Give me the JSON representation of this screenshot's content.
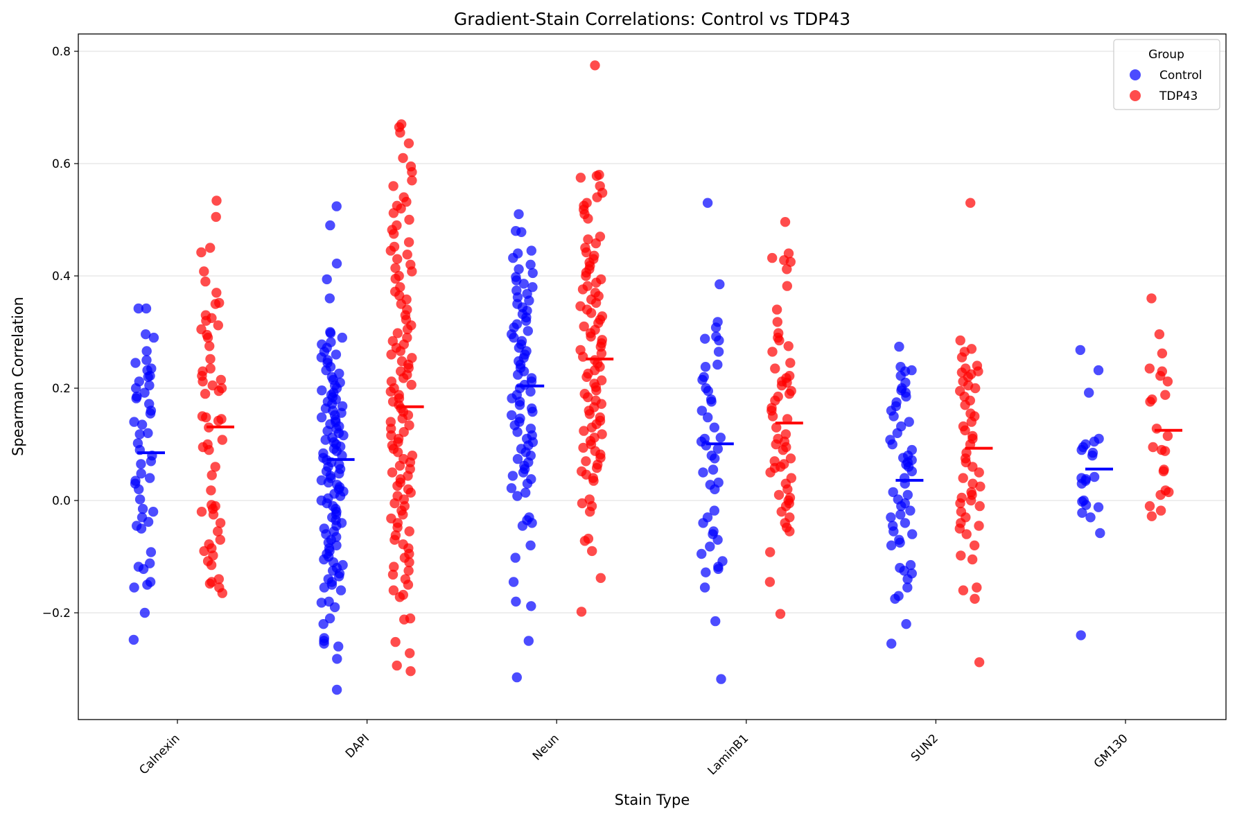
{
  "chart_data": {
    "type": "scatter",
    "subtype": "strip plot with mean markers",
    "title": "Gradient-Stain Correlations: Control vs TDP43",
    "xlabel": "Stain Type",
    "ylabel": "Spearman Correlation",
    "categories": [
      "Calnexin",
      "DAPI",
      "Neun",
      "LaminB1",
      "SUN2",
      "GM130"
    ],
    "ylim": [
      -0.39,
      0.83
    ],
    "yticks": [
      -0.2,
      0.0,
      0.2,
      0.4,
      0.6,
      0.8
    ],
    "ytick_labels": [
      "−0.2",
      "0.0",
      "0.2",
      "0.4",
      "0.6",
      "0.8"
    ],
    "grid": "horizontal",
    "legend": {
      "title": "Group",
      "placement": "top-right",
      "entries": [
        "Control",
        "TDP43"
      ]
    },
    "series": [
      {
        "name": "Control",
        "color": "#0000ff",
        "means": [
          0.085,
          0.073,
          0.204,
          0.101,
          0.036,
          0.056
        ],
        "values": {
          "Calnexin": [
            0.342,
            0.342,
            0.296,
            0.29,
            0.266,
            0.25,
            0.245,
            0.235,
            0.232,
            0.222,
            0.22,
            0.212,
            0.205,
            0.2,
            0.192,
            0.185,
            0.182,
            0.172,
            0.16,
            0.155,
            0.14,
            0.135,
            0.12,
            0.118,
            0.102,
            0.09,
            0.08,
            0.07,
            0.065,
            0.048,
            0.04,
            0.035,
            0.03,
            0.02,
            0.002,
            -0.015,
            -0.02,
            -0.03,
            -0.038,
            -0.045,
            -0.05,
            -0.092,
            -0.112,
            -0.118,
            -0.122,
            -0.145,
            -0.15,
            -0.155,
            -0.2,
            -0.248
          ],
          "DAPI": [
            0.524,
            0.49,
            0.422,
            0.394,
            0.36,
            0.3,
            0.298,
            0.29,
            0.282,
            0.278,
            0.272,
            0.265,
            0.26,
            0.255,
            0.25,
            0.245,
            0.238,
            0.232,
            0.226,
            0.22,
            0.215,
            0.21,
            0.205,
            0.2,
            0.196,
            0.192,
            0.188,
            0.184,
            0.18,
            0.176,
            0.172,
            0.168,
            0.164,
            0.16,
            0.156,
            0.152,
            0.148,
            0.144,
            0.14,
            0.136,
            0.132,
            0.128,
            0.124,
            0.12,
            0.116,
            0.112,
            0.108,
            0.104,
            0.1,
            0.096,
            0.092,
            0.088,
            0.084,
            0.08,
            0.076,
            0.072,
            0.068,
            0.064,
            0.06,
            0.056,
            0.052,
            0.048,
            0.044,
            0.04,
            0.036,
            0.032,
            0.028,
            0.024,
            0.02,
            0.016,
            0.012,
            0.008,
            0.004,
            0.0,
            -0.005,
            -0.01,
            -0.015,
            -0.02,
            -0.025,
            -0.03,
            -0.035,
            -0.04,
            -0.045,
            -0.05,
            -0.055,
            -0.06,
            -0.065,
            -0.07,
            -0.075,
            -0.08,
            -0.085,
            -0.09,
            -0.095,
            -0.1,
            -0.105,
            -0.11,
            -0.115,
            -0.12,
            -0.125,
            -0.13,
            -0.135,
            -0.14,
            -0.145,
            -0.15,
            -0.155,
            -0.16,
            -0.18,
            -0.182,
            -0.19,
            -0.21,
            -0.22,
            -0.245,
            -0.25,
            -0.255,
            -0.26,
            -0.282,
            -0.337
          ],
          "Neun": [
            0.51,
            0.48,
            0.478,
            0.445,
            0.44,
            0.432,
            0.42,
            0.412,
            0.405,
            0.398,
            0.392,
            0.386,
            0.38,
            0.374,
            0.368,
            0.362,
            0.356,
            0.35,
            0.344,
            0.338,
            0.332,
            0.326,
            0.32,
            0.314,
            0.308,
            0.302,
            0.296,
            0.29,
            0.284,
            0.278,
            0.272,
            0.266,
            0.26,
            0.254,
            0.248,
            0.242,
            0.236,
            0.23,
            0.224,
            0.218,
            0.212,
            0.206,
            0.2,
            0.194,
            0.188,
            0.182,
            0.176,
            0.17,
            0.164,
            0.158,
            0.152,
            0.146,
            0.14,
            0.134,
            0.128,
            0.122,
            0.116,
            0.11,
            0.104,
            0.098,
            0.092,
            0.086,
            0.08,
            0.074,
            0.068,
            0.062,
            0.056,
            0.05,
            0.044,
            0.038,
            0.03,
            0.022,
            0.014,
            0.008,
            -0.03,
            -0.035,
            -0.04,
            -0.045,
            -0.08,
            -0.102,
            -0.145,
            -0.18,
            -0.188,
            -0.25,
            -0.315
          ],
          "LaminB1": [
            0.53,
            0.385,
            0.318,
            0.308,
            0.292,
            0.288,
            0.285,
            0.265,
            0.242,
            0.238,
            0.22,
            0.215,
            0.2,
            0.195,
            0.18,
            0.176,
            0.16,
            0.148,
            0.13,
            0.112,
            0.11,
            0.105,
            0.098,
            0.092,
            0.08,
            0.075,
            0.055,
            0.05,
            0.032,
            0.028,
            0.02,
            -0.018,
            -0.03,
            -0.04,
            -0.055,
            -0.06,
            -0.07,
            -0.082,
            -0.095,
            -0.108,
            -0.118,
            -0.122,
            -0.128,
            -0.155,
            -0.215,
            -0.318
          ],
          "SUN2": [
            0.274,
            0.238,
            0.232,
            0.23,
            0.222,
            0.21,
            0.2,
            0.196,
            0.192,
            0.185,
            0.175,
            0.168,
            0.16,
            0.15,
            0.14,
            0.132,
            0.12,
            0.108,
            0.1,
            0.09,
            0.08,
            0.076,
            0.072,
            0.068,
            0.064,
            0.06,
            0.052,
            0.04,
            0.03,
            0.015,
            0.01,
            0.002,
            -0.005,
            -0.01,
            -0.018,
            -0.025,
            -0.03,
            -0.04,
            -0.045,
            -0.055,
            -0.06,
            -0.07,
            -0.075,
            -0.08,
            -0.115,
            -0.12,
            -0.125,
            -0.13,
            -0.14,
            -0.155,
            -0.17,
            -0.175,
            -0.22,
            -0.255
          ],
          "GM130": [
            0.268,
            0.232,
            0.192,
            0.11,
            0.105,
            0.1,
            0.095,
            0.09,
            0.085,
            0.08,
            0.042,
            0.04,
            0.038,
            0.035,
            0.03,
            0.0,
            -0.002,
            -0.008,
            -0.012,
            -0.022,
            -0.03,
            -0.058,
            -0.24
          ]
        }
      },
      {
        "name": "TDP43",
        "color": "#ff0000",
        "means": [
          0.131,
          0.167,
          0.252,
          0.138,
          0.093,
          0.125
        ],
        "values": {
          "Calnexin": [
            0.534,
            0.505,
            0.45,
            0.442,
            0.408,
            0.39,
            0.37,
            0.352,
            0.35,
            0.33,
            0.325,
            0.32,
            0.312,
            0.305,
            0.295,
            0.29,
            0.275,
            0.252,
            0.235,
            0.23,
            0.222,
            0.215,
            0.212,
            0.205,
            0.2,
            0.195,
            0.19,
            0.15,
            0.148,
            0.145,
            0.142,
            0.13,
            0.108,
            0.1,
            0.095,
            0.09,
            0.06,
            0.045,
            0.018,
            -0.008,
            -0.01,
            -0.015,
            -0.02,
            -0.025,
            -0.04,
            -0.055,
            -0.07,
            -0.078,
            -0.085,
            -0.09,
            -0.098,
            -0.108,
            -0.115,
            -0.14,
            -0.145,
            -0.148,
            -0.155,
            -0.165
          ],
          "DAPI": [
            0.67,
            0.665,
            0.655,
            0.636,
            0.61,
            0.595,
            0.585,
            0.57,
            0.56,
            0.54,
            0.532,
            0.525,
            0.52,
            0.512,
            0.5,
            0.49,
            0.482,
            0.475,
            0.46,
            0.452,
            0.445,
            0.438,
            0.43,
            0.42,
            0.414,
            0.408,
            0.4,
            0.395,
            0.38,
            0.372,
            0.365,
            0.358,
            0.35,
            0.34,
            0.33,
            0.322,
            0.312,
            0.305,
            0.298,
            0.29,
            0.284,
            0.278,
            0.272,
            0.266,
            0.26,
            0.254,
            0.248,
            0.242,
            0.236,
            0.23,
            0.224,
            0.218,
            0.212,
            0.206,
            0.2,
            0.194,
            0.188,
            0.182,
            0.176,
            0.17,
            0.164,
            0.158,
            0.152,
            0.146,
            0.14,
            0.134,
            0.128,
            0.122,
            0.116,
            0.11,
            0.104,
            0.098,
            0.092,
            0.086,
            0.08,
            0.074,
            0.068,
            0.062,
            0.056,
            0.05,
            0.044,
            0.038,
            0.032,
            0.026,
            0.02,
            0.014,
            0.008,
            0.002,
            -0.005,
            -0.01,
            -0.018,
            -0.025,
            -0.032,
            -0.04,
            -0.048,
            -0.055,
            -0.062,
            -0.07,
            -0.078,
            -0.085,
            -0.095,
            -0.102,
            -0.11,
            -0.118,
            -0.125,
            -0.132,
            -0.14,
            -0.15,
            -0.16,
            -0.168,
            -0.172,
            -0.21,
            -0.212,
            -0.252,
            -0.272,
            -0.294,
            -0.304
          ],
          "Neun": [
            0.775,
            0.58,
            0.578,
            0.575,
            0.56,
            0.548,
            0.54,
            0.53,
            0.525,
            0.518,
            0.51,
            0.502,
            0.47,
            0.465,
            0.458,
            0.45,
            0.442,
            0.436,
            0.43,
            0.424,
            0.418,
            0.412,
            0.406,
            0.4,
            0.394,
            0.388,
            0.382,
            0.376,
            0.37,
            0.364,
            0.358,
            0.352,
            0.346,
            0.34,
            0.334,
            0.328,
            0.322,
            0.316,
            0.31,
            0.304,
            0.298,
            0.292,
            0.286,
            0.28,
            0.274,
            0.268,
            0.262,
            0.256,
            0.25,
            0.244,
            0.238,
            0.232,
            0.226,
            0.22,
            0.214,
            0.208,
            0.202,
            0.196,
            0.19,
            0.184,
            0.178,
            0.172,
            0.166,
            0.16,
            0.154,
            0.148,
            0.142,
            0.136,
            0.13,
            0.124,
            0.118,
            0.112,
            0.106,
            0.1,
            0.094,
            0.088,
            0.082,
            0.076,
            0.07,
            0.064,
            0.058,
            0.052,
            0.046,
            0.04,
            0.035,
            0.002,
            -0.005,
            -0.01,
            -0.02,
            -0.068,
            -0.072,
            -0.09,
            -0.138,
            -0.198
          ],
          "LaminB1": [
            0.496,
            0.44,
            0.432,
            0.428,
            0.425,
            0.412,
            0.382,
            0.34,
            0.318,
            0.298,
            0.29,
            0.285,
            0.275,
            0.265,
            0.245,
            0.235,
            0.222,
            0.218,
            0.212,
            0.21,
            0.205,
            0.195,
            0.19,
            0.185,
            0.178,
            0.165,
            0.16,
            0.15,
            0.145,
            0.13,
            0.118,
            0.11,
            0.105,
            0.1,
            0.095,
            0.09,
            0.075,
            0.07,
            0.065,
            0.06,
            0.058,
            0.05,
            0.04,
            0.03,
            0.02,
            0.01,
            0.005,
            0.0,
            -0.005,
            -0.01,
            -0.02,
            -0.03,
            -0.04,
            -0.048,
            -0.055,
            -0.092,
            -0.145,
            -0.202
          ],
          "SUN2": [
            0.53,
            0.285,
            0.27,
            0.265,
            0.255,
            0.24,
            0.235,
            0.23,
            0.228,
            0.225,
            0.22,
            0.212,
            0.205,
            0.2,
            0.195,
            0.185,
            0.178,
            0.17,
            0.155,
            0.15,
            0.14,
            0.132,
            0.125,
            0.115,
            0.11,
            0.1,
            0.085,
            0.075,
            0.068,
            0.06,
            0.05,
            0.04,
            0.03,
            0.025,
            0.015,
            0.01,
            0.005,
            0.0,
            -0.005,
            -0.01,
            -0.02,
            -0.03,
            -0.04,
            -0.045,
            -0.05,
            -0.06,
            -0.08,
            -0.098,
            -0.105,
            -0.155,
            -0.16,
            -0.175,
            -0.288
          ],
          "GM130": [
            0.36,
            0.296,
            0.262,
            0.235,
            0.23,
            0.222,
            0.212,
            0.188,
            0.18,
            0.176,
            0.128,
            0.115,
            0.095,
            0.09,
            0.088,
            0.055,
            0.052,
            0.018,
            0.015,
            0.01,
            -0.01,
            -0.018,
            -0.028
          ]
        }
      }
    ]
  }
}
